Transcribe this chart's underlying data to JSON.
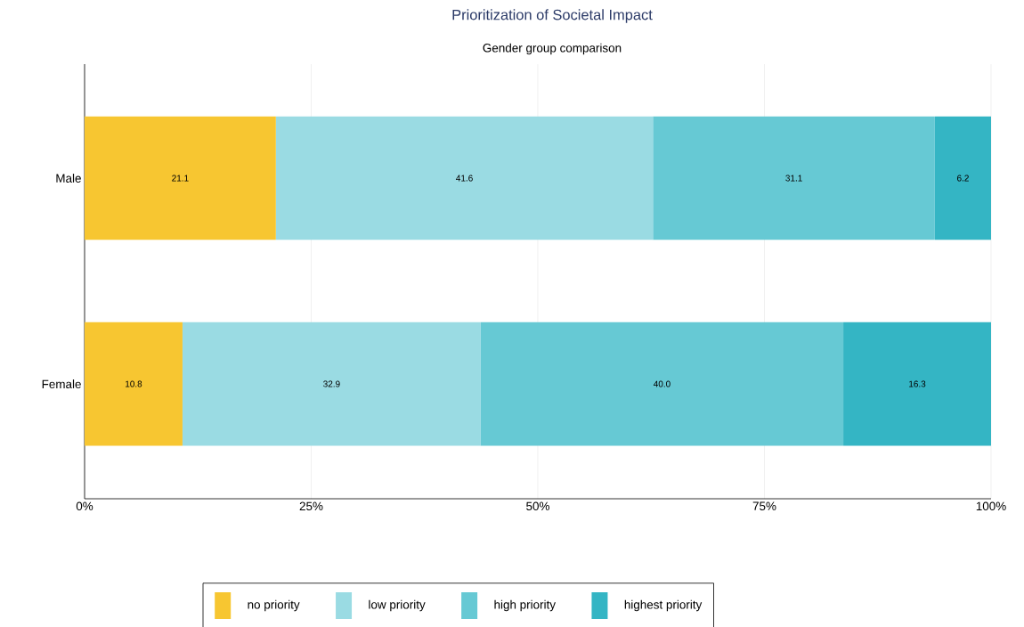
{
  "chart_data": {
    "type": "bar",
    "orientation": "horizontal",
    "stacked": true,
    "title": "Prioritization of Societal Impact",
    "subtitle": "Gender group comparison",
    "categories": [
      "Male",
      "Female"
    ],
    "series": [
      {
        "name": "no priority",
        "color": "#f7c631",
        "values": [
          21.1,
          10.8
        ],
        "value_labels": [
          "21.1",
          "10.8"
        ]
      },
      {
        "name": "low priority",
        "color": "#9adbe3",
        "values": [
          41.6,
          32.9
        ],
        "value_labels": [
          "41.6",
          "32.9"
        ]
      },
      {
        "name": "high priority",
        "color": "#66c9d4",
        "values": [
          31.1,
          40.0
        ],
        "value_labels": [
          "31.1",
          "40.0"
        ]
      },
      {
        "name": "highest priority",
        "color": "#34b5c4",
        "values": [
          6.2,
          16.3
        ],
        "value_labels": [
          "6.2",
          "16.3"
        ]
      }
    ],
    "xlim": [
      0,
      100
    ],
    "xticks": [
      {
        "value": 0,
        "label": "0%"
      },
      {
        "value": 25,
        "label": "25%"
      },
      {
        "value": 50,
        "label": "50%"
      },
      {
        "value": 75,
        "label": "75%"
      },
      {
        "value": 100,
        "label": "100%"
      }
    ],
    "grid": "x",
    "legend": "bottom"
  }
}
